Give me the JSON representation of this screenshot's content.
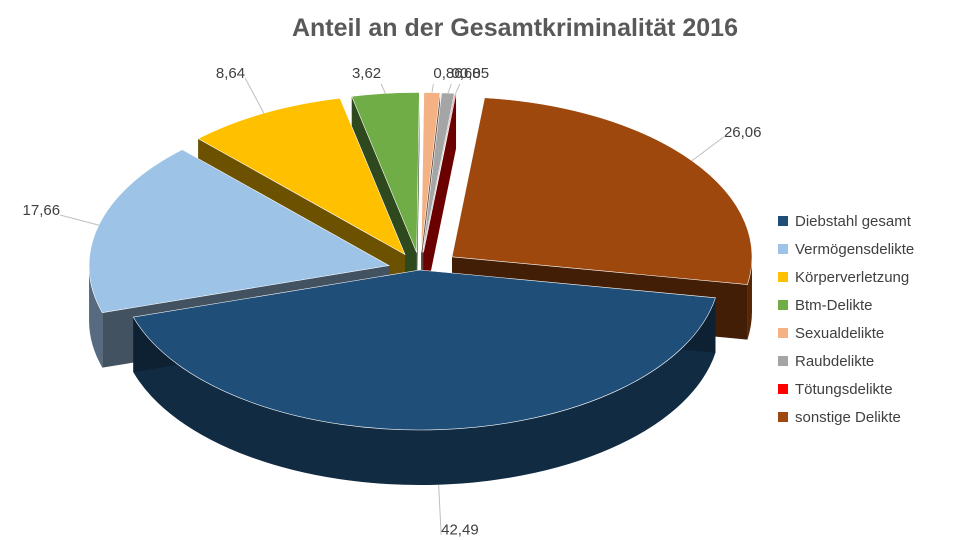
{
  "chart_data": {
    "type": "pie",
    "title": "Anteil an der Gesamtkriminalität 2016",
    "three_d": true,
    "legend_position": "right",
    "slices": [
      {
        "name": "Diebstahl gesamt",
        "value": 42.49,
        "label": "42,49",
        "color": "#1F4E79"
      },
      {
        "name": "Vermögensdelikte",
        "value": 17.66,
        "label": "17,66",
        "color": "#9DC3E6"
      },
      {
        "name": "Körperverletzung",
        "value": 8.64,
        "label": "8,64",
        "color": "#FFC000"
      },
      {
        "name": "Btm-Delikte",
        "value": 3.62,
        "label": "3,62",
        "color": "#70AD47"
      },
      {
        "name": "Sexualdelikte",
        "value": 0.86,
        "label": "0,86",
        "color": "#F4B183"
      },
      {
        "name": "Raubdelikte",
        "value": 0.68,
        "label": "0,68",
        "color": "#A5A5A5"
      },
      {
        "name": "Tötungsdelikte",
        "value": 0.05,
        "label": "0,05",
        "color": "#FF0000"
      },
      {
        "name": "sonstige Delikte",
        "value": 26.06,
        "label": "26,06",
        "color": "#9E480E"
      }
    ]
  }
}
